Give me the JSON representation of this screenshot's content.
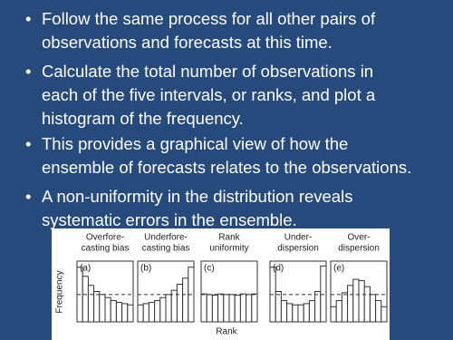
{
  "bullets": [
    [
      "Follow the same process for all other pairs of",
      "observations and forecasts at this time."
    ],
    [
      "Calculate the total number of observations in",
      "each of the five intervals, or ranks, and plot a",
      "histogram of the frequency."
    ],
    [
      "This provides a graphical view of how the",
      "ensemble of forecasts relates to the observations."
    ],
    [
      "A non-uniformity in the distribution reveals",
      "systematic errors in the ensemble."
    ]
  ],
  "figure": {
    "y_label": "Frequency",
    "x_label": "Rank",
    "ylim": [
      0,
      100
    ],
    "reference_level": 45,
    "panels": [
      {
        "title": [
          "Overfore-",
          "casting bias"
        ],
        "label": "(a)",
        "values": [
          90,
          75,
          60,
          50,
          45,
          40,
          35,
          32,
          30,
          28
        ]
      },
      {
        "title": [
          "Underfore-",
          "casting bias"
        ],
        "label": "(b)",
        "values": [
          28,
          30,
          32,
          35,
          40,
          45,
          52,
          62,
          72,
          90
        ]
      },
      {
        "title": [
          "Rank",
          "uniformity"
        ],
        "label": "(c)",
        "values": [
          46,
          45,
          44,
          46,
          45,
          45,
          44,
          46,
          45,
          46
        ]
      },
      {
        "title": [
          "Under-",
          "dispersion"
        ],
        "label": "(d)",
        "values": [
          90,
          50,
          35,
          30,
          28,
          28,
          30,
          35,
          50,
          92
        ]
      },
      {
        "title": [
          "Over-",
          "dispersion"
        ],
        "label": "(e)",
        "values": [
          25,
          35,
          48,
          60,
          70,
          68,
          58,
          45,
          35,
          25
        ]
      }
    ]
  }
}
